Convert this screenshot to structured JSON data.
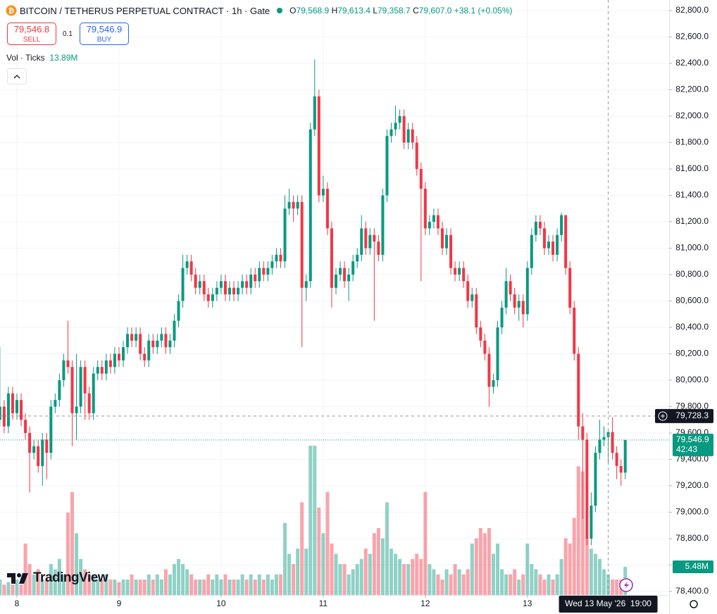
{
  "header": {
    "symbol": "BITCOIN / TETHERUS PERPETUAL CONTRACT · 1h · Gate",
    "o_label": "O",
    "o": "79,568.9",
    "h_label": "H",
    "h": "79,613.4",
    "l_label": "L",
    "l": "79,358.7",
    "c_label": "C",
    "c": "79,607.0",
    "change": "+38.1 (+0.05%)"
  },
  "trade": {
    "sell_price": "79,546.8",
    "sell": "SELL",
    "qty": "0.1",
    "buy_price": "79,546.9",
    "buy": "BUY"
  },
  "volume_legend": {
    "label": "Vol · Ticks",
    "value": "13.89M"
  },
  "logo": "TradingView",
  "chart_data": {
    "type": "candlestick",
    "up_color": "#089981",
    "down_color": "#f23645",
    "grid": true,
    "ylim": [
      78373,
      82880
    ],
    "yticks": [
      {
        "value": 82800,
        "label": "82,800.0"
      },
      {
        "value": 82600,
        "label": "82,600.0"
      },
      {
        "value": 82400,
        "label": "82,400.0"
      },
      {
        "value": 82200,
        "label": "82,200.0"
      },
      {
        "value": 82000,
        "label": "82,000.0"
      },
      {
        "value": 81800,
        "label": "81,800.0"
      },
      {
        "value": 81600,
        "label": "81,600.0"
      },
      {
        "value": 81400,
        "label": "81,400.0"
      },
      {
        "value": 81200,
        "label": "81,200.0"
      },
      {
        "value": 81000,
        "label": "81,000.0"
      },
      {
        "value": 80800,
        "label": "80,800.0"
      },
      {
        "value": 80600,
        "label": "80,600.0"
      },
      {
        "value": 80400,
        "label": "80,400.0"
      },
      {
        "value": 80200,
        "label": "80,200.0"
      },
      {
        "value": 80000,
        "label": "80,000.0"
      },
      {
        "value": 79800,
        "label": "79,800.0"
      },
      {
        "value": 79600,
        "label": "79,600.0"
      },
      {
        "value": 79400,
        "label": "79,400.0"
      },
      {
        "value": 79200,
        "label": "79,200.0"
      },
      {
        "value": 79000,
        "label": "79,000.0"
      },
      {
        "value": 78800,
        "label": "78,800.0"
      },
      {
        "value": 78600,
        "label": "78,600.0"
      },
      {
        "value": 78400,
        "label": "78,400.0"
      }
    ],
    "xticks": [
      {
        "value": 4,
        "label": "8"
      },
      {
        "value": 28,
        "label": "9"
      },
      {
        "value": 52,
        "label": "10"
      },
      {
        "value": 76,
        "label": "11"
      },
      {
        "value": 100,
        "label": "12"
      },
      {
        "value": 124,
        "label": "13"
      }
    ],
    "open": [
      79700,
      79800,
      79650,
      79900,
      79750,
      79850,
      79700,
      79600,
      79450,
      79500,
      79350,
      79550,
      79450,
      79800,
      79850,
      80000,
      80150,
      80100,
      79750,
      79800,
      80100,
      79900,
      79750,
      80050,
      80100,
      80050,
      80150,
      80100,
      80200,
      80150,
      80250,
      80350,
      80300,
      80350,
      80200,
      80150,
      80300,
      80250,
      80300,
      80350,
      80250,
      80300,
      80450,
      80600,
      80850,
      80900,
      80800,
      80700,
      80750,
      80650,
      80600,
      80650,
      80700,
      80750,
      80650,
      80700,
      80650,
      80700,
      80750,
      80700,
      80800,
      80750,
      80850,
      80800,
      80850,
      80900,
      80950,
      80900,
      81300,
      81350,
      81300,
      81350,
      80700,
      80750,
      81900,
      82150,
      81400,
      81450,
      81150,
      80700,
      80800,
      80850,
      80750,
      80800,
      80900,
      80950,
      81150,
      81000,
      81100,
      81050,
      80950,
      81400,
      81850,
      81900,
      81950,
      82000,
      81800,
      81900,
      81800,
      81600,
      81450,
      81150,
      81200,
      81250,
      81150,
      81000,
      81100,
      80850,
      80800,
      80850,
      80750,
      80600,
      80650,
      80400,
      80300,
      80200,
      79950,
      80000,
      80400,
      80550,
      80750,
      80650,
      80550,
      80600,
      80500,
      80850,
      81100,
      81200,
      81150,
      81000,
      81050,
      80950,
      81100,
      81250,
      80850,
      80550,
      80200,
      79650,
      79550,
      78800,
      79050,
      79450,
      79550,
      79568.9,
      79607.0,
      79450,
      79350,
      79300
    ],
    "high": [
      80250,
      79850,
      79950,
      79950,
      79900,
      79900,
      79750,
      79650,
      79550,
      79550,
      79600,
      79600,
      79850,
      79900,
      80050,
      80200,
      80450,
      80150,
      80200,
      80150,
      80150,
      79950,
      80100,
      80150,
      80150,
      80200,
      80200,
      80250,
      80250,
      80300,
      80400,
      80400,
      80400,
      80400,
      80250,
      80350,
      80350,
      80350,
      80400,
      80400,
      80350,
      80500,
      80650,
      80950,
      80950,
      80950,
      80850,
      80800,
      80800,
      80700,
      80700,
      80750,
      80800,
      80800,
      80750,
      80750,
      80750,
      80800,
      80800,
      80850,
      80850,
      80900,
      80900,
      80900,
      80950,
      81000,
      81000,
      81400,
      81450,
      81400,
      81400,
      81400,
      80800,
      81950,
      82430,
      82200,
      81550,
      81500,
      81200,
      80850,
      80900,
      80900,
      80850,
      80950,
      81000,
      81250,
      81200,
      81150,
      81150,
      81100,
      81450,
      81900,
      81950,
      82080,
      82050,
      82050,
      81950,
      81950,
      81850,
      81650,
      81500,
      81250,
      81300,
      81300,
      81200,
      81150,
      81150,
      80900,
      80900,
      80900,
      80800,
      80700,
      80700,
      80450,
      80350,
      80250,
      80050,
      80450,
      80600,
      80850,
      80800,
      80700,
      80650,
      80650,
      80900,
      81150,
      81250,
      81250,
      81200,
      81100,
      81100,
      81150,
      81270,
      81250,
      80900,
      80600,
      80250,
      79750,
      79600,
      79150,
      79500,
      79700,
      79650,
      79613.4,
      79720,
      79500,
      79400,
      79550
    ],
    "low": [
      79650,
      79600,
      79600,
      79700,
      79700,
      79650,
      79550,
      79150,
      79400,
      79300,
      79200,
      79250,
      79400,
      79750,
      79800,
      79950,
      80050,
      79500,
      79550,
      79750,
      79700,
      79700,
      79700,
      80000,
      80000,
      80000,
      80050,
      80050,
      80100,
      80100,
      80200,
      80250,
      80250,
      80150,
      80100,
      80100,
      80200,
      80200,
      80250,
      80200,
      80200,
      80250,
      80400,
      80550,
      80800,
      80750,
      80650,
      80650,
      80600,
      80550,
      80550,
      80600,
      80650,
      80600,
      80600,
      80600,
      80600,
      80650,
      80650,
      80650,
      80700,
      80700,
      80750,
      80750,
      80800,
      80850,
      80850,
      80850,
      81250,
      81200,
      81250,
      80250,
      80600,
      80700,
      81850,
      81350,
      81350,
      81100,
      80550,
      80650,
      80750,
      80700,
      80600,
      80750,
      80850,
      80900,
      80950,
      80950,
      80450,
      80900,
      80900,
      81350,
      81800,
      81850,
      81900,
      81750,
      81750,
      81750,
      81550,
      80750,
      81100,
      81100,
      81150,
      81100,
      80950,
      80950,
      80800,
      80750,
      80750,
      80700,
      80550,
      80550,
      80350,
      80250,
      80150,
      79800,
      79900,
      79950,
      80350,
      80500,
      80600,
      80500,
      80450,
      80400,
      80450,
      80800,
      81050,
      81100,
      80950,
      80950,
      80900,
      80900,
      81050,
      80800,
      80500,
      80150,
      79550,
      78950,
      78750,
      78750,
      79000,
      79400,
      79500,
      79358.7,
      79400,
      79250,
      79200,
      79250
    ],
    "close": [
      79800,
      79650,
      79900,
      79750,
      79850,
      79700,
      79600,
      79450,
      79500,
      79350,
      79550,
      79450,
      79800,
      79850,
      80000,
      80150,
      80100,
      79750,
      79800,
      80100,
      79900,
      79750,
      80050,
      80100,
      80050,
      80150,
      80100,
      80200,
      80150,
      80250,
      80350,
      80300,
      80350,
      80200,
      80150,
      80300,
      80250,
      80300,
      80350,
      80250,
      80300,
      80450,
      80600,
      80850,
      80900,
      80800,
      80700,
      80750,
      80650,
      80600,
      80650,
      80700,
      80750,
      80650,
      80700,
      80650,
      80700,
      80750,
      80700,
      80800,
      80750,
      80850,
      80800,
      80850,
      80900,
      80950,
      80900,
      81300,
      81350,
      81300,
      81350,
      80700,
      80750,
      81900,
      82150,
      81400,
      81450,
      81150,
      80700,
      80800,
      80850,
      80750,
      80800,
      80900,
      80950,
      81150,
      81000,
      81100,
      81050,
      80950,
      81400,
      81850,
      81900,
      81950,
      82000,
      81800,
      81900,
      81800,
      81600,
      81450,
      81150,
      81200,
      81250,
      81150,
      81000,
      81100,
      80850,
      80800,
      80850,
      80750,
      80600,
      80650,
      80400,
      80300,
      80200,
      79950,
      80000,
      80400,
      80550,
      80750,
      80650,
      80550,
      80600,
      80500,
      80850,
      81100,
      81200,
      81150,
      81000,
      81050,
      80950,
      81100,
      81250,
      80850,
      80550,
      80200,
      79650,
      79550,
      78800,
      79050,
      79450,
      79550,
      79568.9,
      79607.0,
      79450,
      79350,
      79300,
      79546.9
    ],
    "volume": [
      3,
      2,
      2.5,
      2,
      3,
      2,
      10,
      6,
      4,
      5,
      3,
      3,
      6,
      5,
      7,
      4,
      16,
      20,
      12,
      7,
      5,
      4,
      4,
      3,
      3,
      4,
      3,
      3,
      2.5,
      3,
      3,
      4,
      3,
      3,
      3,
      4,
      3,
      4,
      3,
      5,
      4,
      6,
      7,
      6,
      5,
      4,
      3,
      3,
      3,
      4,
      3,
      4,
      3,
      4,
      3,
      3,
      3,
      4,
      3,
      4,
      3,
      4,
      3,
      4,
      3,
      4,
      4,
      14,
      8,
      6,
      9,
      18,
      9,
      29,
      29,
      17,
      12,
      20,
      10,
      8,
      6,
      6,
      4,
      5,
      6,
      7,
      9,
      8,
      12,
      13,
      11,
      18,
      9,
      8,
      7,
      6,
      6,
      7,
      8,
      7,
      20,
      6,
      5,
      4,
      3,
      5,
      4,
      6,
      5,
      4,
      5,
      10,
      11,
      13,
      12,
      13,
      8,
      10,
      5,
      4,
      4,
      5,
      3,
      4,
      10,
      6,
      5,
      4,
      3,
      4,
      3,
      4,
      7,
      11,
      10,
      15,
      25,
      24,
      11,
      9,
      8,
      7,
      5,
      4,
      3,
      3,
      3,
      5.48
    ],
    "volume_ylim": [
      0,
      29
    ],
    "volume_label": "5.48M",
    "crosshair": {
      "price": 79728.3,
      "price_label": "79,728.3",
      "index": 143,
      "time_label": "Wed 13 May '26  19:00"
    },
    "last_price": {
      "value": 79546.9,
      "label": "79,546.9",
      "countdown": "42:43"
    }
  }
}
